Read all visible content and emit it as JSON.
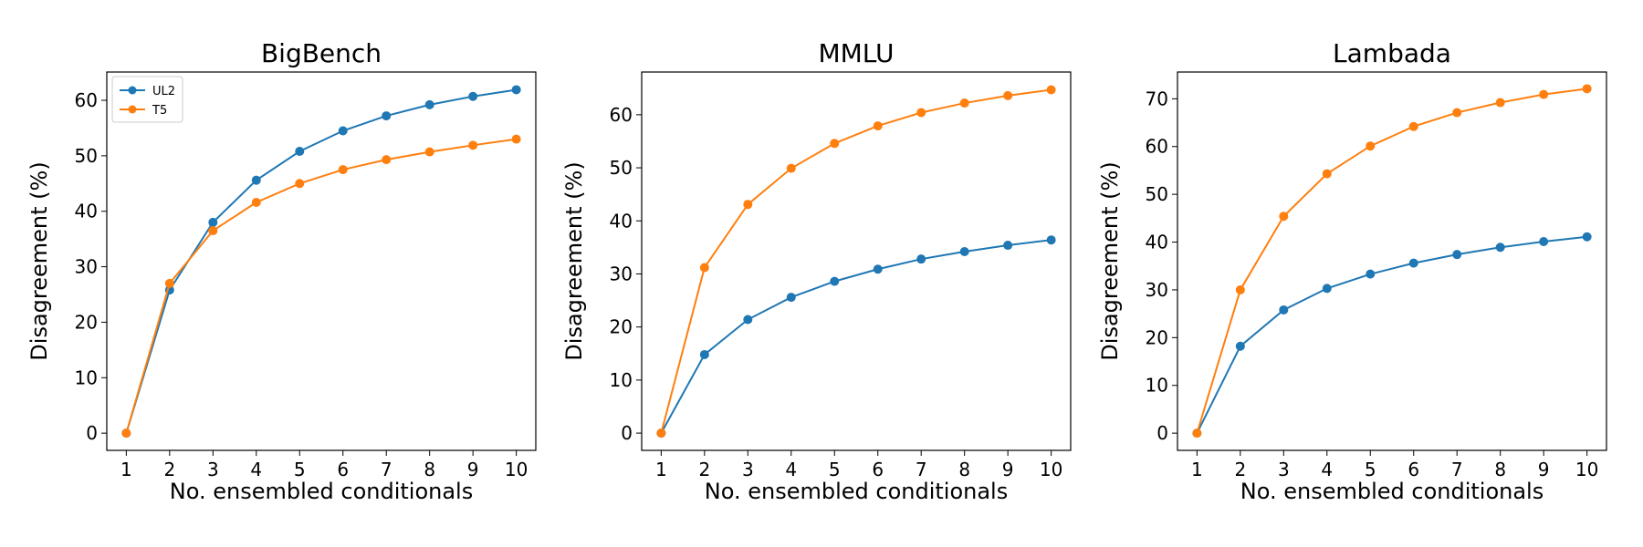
{
  "chart_data": [
    {
      "type": "line",
      "title": "BigBench",
      "xlabel": "No. ensembled conditionals",
      "ylabel": "Disagreement (%)",
      "x": [
        1,
        2,
        3,
        4,
        5,
        6,
        7,
        8,
        9,
        10
      ],
      "xlim": [
        0.55,
        10.45
      ],
      "ylim": [
        -3.1,
        65.1
      ],
      "yticks": [
        0,
        10,
        20,
        30,
        40,
        50,
        60
      ],
      "legend": "top-left",
      "series": [
        {
          "name": "UL2",
          "color": "#1f77b4",
          "values": [
            0,
            25.8,
            38.0,
            45.6,
            50.8,
            54.5,
            57.2,
            59.2,
            60.7,
            61.9
          ]
        },
        {
          "name": "T5",
          "color": "#ff7f0e",
          "values": [
            0,
            27.0,
            36.5,
            41.6,
            45.0,
            47.5,
            49.3,
            50.7,
            51.9,
            53.0
          ]
        }
      ]
    },
    {
      "type": "line",
      "title": "MMLU",
      "xlabel": "No. ensembled conditionals",
      "ylabel": "Disagreement (%)",
      "x": [
        1,
        2,
        3,
        4,
        5,
        6,
        7,
        8,
        9,
        10
      ],
      "xlim": [
        0.55,
        10.45
      ],
      "ylim": [
        -3.25,
        68.05
      ],
      "yticks": [
        0,
        10,
        20,
        30,
        40,
        50,
        60
      ],
      "series": [
        {
          "name": "UL2",
          "color": "#1f77b4",
          "values": [
            0,
            14.8,
            21.4,
            25.6,
            28.6,
            30.9,
            32.8,
            34.2,
            35.4,
            36.4
          ]
        },
        {
          "name": "T5",
          "color": "#ff7f0e",
          "values": [
            0,
            31.2,
            43.1,
            49.9,
            54.6,
            57.9,
            60.4,
            62.2,
            63.6,
            64.7
          ]
        }
      ]
    },
    {
      "type": "line",
      "title": "Lambada",
      "xlabel": "No. ensembled conditionals",
      "ylabel": "Disagreement (%)",
      "x": [
        1,
        2,
        3,
        4,
        5,
        6,
        7,
        8,
        9,
        10
      ],
      "xlim": [
        0.55,
        10.45
      ],
      "ylim": [
        -3.6,
        75.6
      ],
      "yticks": [
        0,
        10,
        20,
        30,
        40,
        50,
        60,
        70
      ],
      "series": [
        {
          "name": "UL2",
          "color": "#1f77b4",
          "values": [
            0,
            18.2,
            25.8,
            30.3,
            33.3,
            35.6,
            37.4,
            38.9,
            40.1,
            41.1
          ]
        },
        {
          "name": "T5",
          "color": "#ff7f0e",
          "values": [
            0,
            30.0,
            45.4,
            54.3,
            60.1,
            64.2,
            67.1,
            69.2,
            70.9,
            72.1
          ]
        }
      ]
    }
  ]
}
